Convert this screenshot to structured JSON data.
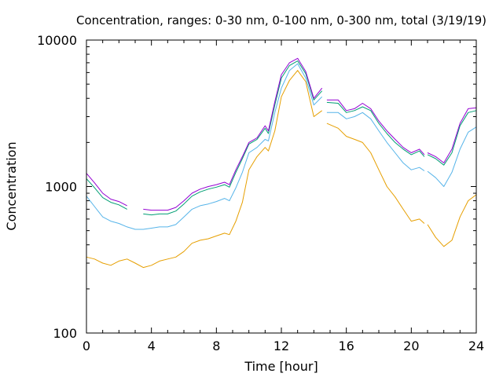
{
  "chart_data": {
    "type": "line",
    "title": "Concentration, ranges: 0-30 nm, 0-100 nm, 0-300 nm, total (3/19/19)",
    "xlabel": "Time [hour]",
    "ylabel": "Concentration",
    "xlim": [
      0,
      24
    ],
    "ylim": [
      100,
      10000
    ],
    "yscale": "log",
    "grid": false,
    "x_ticks": [
      0,
      4,
      8,
      12,
      16,
      20,
      24
    ],
    "x_tick_labels": [
      "0",
      "4",
      "8",
      "12",
      "16",
      "20",
      "24"
    ],
    "y_ticks": [
      100,
      1000,
      10000
    ],
    "y_tick_labels": [
      "100",
      "1000",
      "10000"
    ],
    "series": [
      {
        "color": "#e69f00",
        "x": [
          0,
          0.5,
          1,
          1.5,
          2,
          2.5,
          3,
          3.5,
          4,
          4.5,
          5,
          5.5,
          6,
          6.5,
          7,
          7.5,
          8,
          8.5,
          8.8,
          9.2,
          9.6,
          10,
          10.5,
          11,
          11.2,
          11.6,
          12,
          12.5,
          13,
          13.5,
          14,
          14.5,
          null,
          14.8,
          15.5,
          16,
          16.5,
          17,
          17.5,
          18,
          18.5,
          19,
          19.5,
          20,
          20.5,
          20.8,
          null,
          21,
          21.5,
          22,
          22.5,
          23,
          23.5,
          24
        ],
        "y": [
          330,
          320,
          300,
          290,
          310,
          320,
          300,
          280,
          290,
          310,
          320,
          330,
          360,
          410,
          430,
          440,
          460,
          480,
          470,
          580,
          780,
          1300,
          1600,
          1850,
          1750,
          2400,
          4100,
          5300,
          6200,
          5200,
          3000,
          3300,
          null,
          2700,
          2500,
          2200,
          2100,
          2000,
          1700,
          1300,
          1000,
          850,
          700,
          580,
          600,
          560,
          null,
          550,
          450,
          390,
          430,
          620,
          800,
          880
        ]
      },
      {
        "color": "#56b4e9",
        "x": [
          0,
          0.5,
          1,
          1.5,
          2,
          2.5,
          3,
          3.5,
          4,
          4.5,
          5,
          5.5,
          6,
          6.5,
          7,
          7.5,
          8,
          8.5,
          8.8,
          9.2,
          9.6,
          10,
          10.5,
          11,
          11.2,
          11.6,
          12,
          12.5,
          13,
          13.5,
          14,
          14.5,
          null,
          14.8,
          15.5,
          16,
          16.5,
          17,
          17.5,
          18,
          18.5,
          19,
          19.5,
          20,
          20.5,
          20.8,
          null,
          21,
          21.5,
          22,
          22.5,
          23,
          23.5,
          24
        ],
        "y": [
          860,
          730,
          620,
          580,
          560,
          530,
          510,
          510,
          520,
          530,
          530,
          550,
          620,
          700,
          740,
          760,
          790,
          830,
          800,
          980,
          1250,
          1700,
          1850,
          2100,
          2050,
          3200,
          4700,
          6200,
          6900,
          5500,
          3600,
          4100,
          null,
          3200,
          3200,
          2900,
          3000,
          3200,
          2900,
          2400,
          2000,
          1700,
          1450,
          1300,
          1350,
          1280,
          null,
          1270,
          1150,
          1000,
          1250,
          1800,
          2350,
          2550
        ]
      },
      {
        "color": "#009e73",
        "x": [
          0,
          0.5,
          1,
          1.5,
          2,
          2.5,
          3,
          3.5,
          4,
          4.5,
          5,
          5.5,
          6,
          6.5,
          7,
          7.5,
          8,
          8.5,
          8.8,
          9.2,
          9.6,
          10,
          10.5,
          11,
          11.2,
          11.6,
          12,
          12.5,
          13,
          13.5,
          14,
          14.5,
          null,
          14.8,
          15.5,
          16,
          16.5,
          17,
          17.5,
          18,
          18.5,
          19,
          19.5,
          20,
          20.5,
          20.8,
          null,
          21,
          21.5,
          22,
          22.5,
          23,
          23.5,
          24
        ],
        "y": [
          1130,
          980,
          840,
          780,
          750,
          700,
          null,
          650,
          640,
          650,
          650,
          680,
          760,
          860,
          920,
          960,
          990,
          1030,
          990,
          1250,
          1550,
          1950,
          2100,
          2500,
          2300,
          3600,
          5500,
          6700,
          7200,
          5900,
          3900,
          4500,
          null,
          3750,
          3700,
          3200,
          3300,
          3500,
          3300,
          2700,
          2300,
          2000,
          1800,
          1650,
          1750,
          1600,
          null,
          1650,
          1550,
          1400,
          1700,
          2600,
          3200,
          3300
        ]
      },
      {
        "color": "#9400d3",
        "x": [
          0,
          0.5,
          1,
          1.5,
          2,
          2.5,
          3,
          3.5,
          4,
          4.5,
          5,
          5.5,
          6,
          6.5,
          7,
          7.5,
          8,
          8.5,
          8.8,
          9.2,
          9.6,
          10,
          10.5,
          11,
          11.2,
          11.6,
          12,
          12.5,
          13,
          13.5,
          14,
          14.5,
          null,
          14.8,
          15.5,
          16,
          16.5,
          17,
          17.5,
          18,
          18.5,
          19,
          19.5,
          20,
          20.5,
          20.8,
          null,
          21,
          21.5,
          22,
          22.5,
          23,
          23.5,
          24
        ],
        "y": [
          1230,
          1060,
          900,
          820,
          790,
          740,
          null,
          700,
          690,
          690,
          690,
          720,
          800,
          900,
          960,
          1000,
          1030,
          1070,
          1030,
          1300,
          1600,
          2000,
          2150,
          2600,
          2400,
          3800,
          5800,
          7000,
          7500,
          6100,
          4000,
          4700,
          null,
          3900,
          3900,
          3300,
          3400,
          3700,
          3400,
          2800,
          2400,
          2100,
          1850,
          1700,
          1800,
          1650,
          null,
          1700,
          1600,
          1450,
          1800,
          2700,
          3400,
          3450
        ]
      }
    ]
  }
}
